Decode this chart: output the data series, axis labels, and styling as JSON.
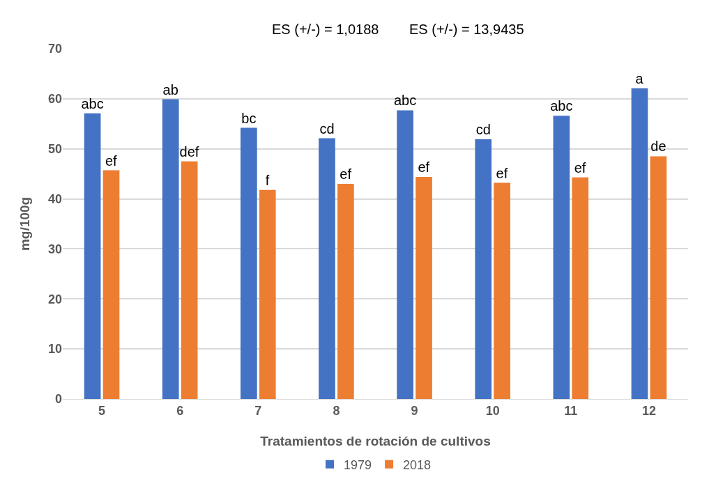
{
  "chart_data": {
    "type": "bar",
    "xlabel": "Tratamientos de rotación de cultivos",
    "ylabel": "mg/100g",
    "categories": [
      "5",
      "6",
      "7",
      "8",
      "9",
      "10",
      "11",
      "12"
    ],
    "series": [
      {
        "name": "1979",
        "color": "#4472c4",
        "values": [
          57.1,
          59.9,
          54.2,
          52.1,
          57.7,
          51.9,
          56.6,
          62.1
        ],
        "value_labels": [
          "abc",
          "ab",
          "bc",
          "cd",
          "abc",
          "cd",
          "abc",
          "a"
        ]
      },
      {
        "name": "2018",
        "color": "#ed7d31",
        "values": [
          45.7,
          47.5,
          41.8,
          43.0,
          44.4,
          43.2,
          44.3,
          48.5
        ],
        "value_labels": [
          "ef",
          "def",
          "f",
          "ef",
          "ef",
          "ef",
          "ef",
          "de"
        ]
      }
    ],
    "ylim": [
      0,
      70
    ],
    "yticks": [
      0,
      10,
      20,
      30,
      40,
      50,
      60,
      70
    ],
    "grid": "y",
    "legend": "bottom",
    "annotations": [
      "ES (+/-) = 1,0188",
      "ES (+/-) = 13,9435"
    ]
  }
}
